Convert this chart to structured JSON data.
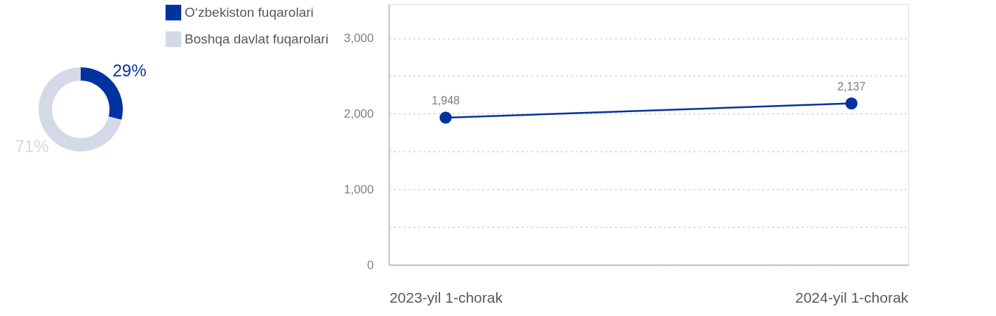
{
  "chart_data": [
    {
      "type": "donut",
      "categories": [
        "O‘zbekiston fuqarolari",
        "Boshqa davlat fuqarolari"
      ],
      "values": [
        29,
        71
      ],
      "colors": [
        "#0033a0",
        "#d5d8e6"
      ],
      "value_labels": [
        "29%",
        "71%"
      ],
      "legend": "right"
    },
    {
      "type": "line",
      "categories": [
        "2023-yil 1-chorak",
        "2024-yil 1-chorak"
      ],
      "series": [
        {
          "color": "#0033a0",
          "values": [
            1948,
            2137
          ],
          "value_labels": [
            "1,948",
            "2,137"
          ]
        }
      ],
      "ylim": [
        0,
        3450
      ],
      "yticks": [
        {
          "value": 0,
          "label": "0"
        },
        {
          "value": 500,
          "label": null
        },
        {
          "value": 1000,
          "label": "1,000"
        },
        {
          "value": 1500,
          "label": null
        },
        {
          "value": 2000,
          "label": "2,000"
        },
        {
          "value": 2500,
          "label": null
        },
        {
          "value": 3000,
          "label": "3,000"
        }
      ],
      "grid": "y",
      "marker": "circle",
      "line_style": "solid"
    }
  ]
}
